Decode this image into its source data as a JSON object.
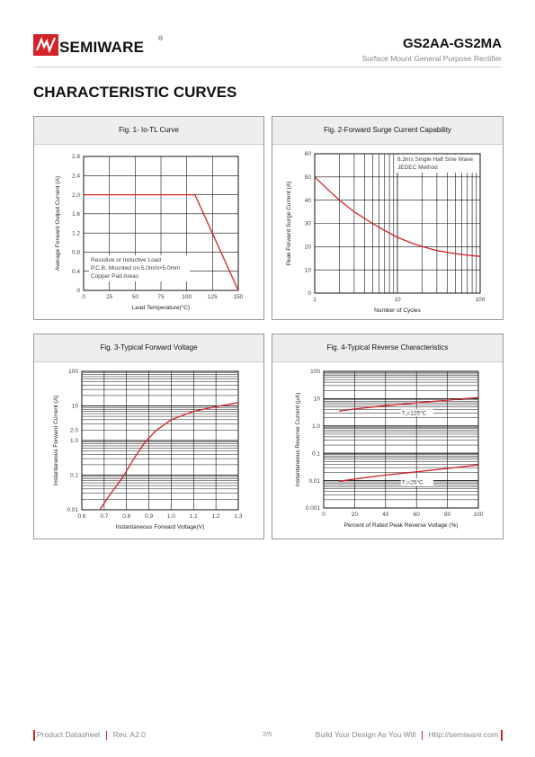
{
  "header": {
    "brand": "SEMIWARE",
    "reg_mark": "®",
    "part_number": "GS2AA-GS2MA",
    "subtitle": "Surface Mount General Purpose Rectifier"
  },
  "section_title": "CHARACTERISTIC CURVES",
  "colors": {
    "accent": "#d2232a",
    "grid": "#111111",
    "panel_header": "#eeeeef"
  },
  "figures": [
    {
      "title": "Fig. 1-  Io-TL Curve",
      "chart_data": {
        "type": "line",
        "xlabel": "Lead Temperature(°C)",
        "ylabel": "Average Forward Output Current (A)",
        "xlim": [
          0,
          150
        ],
        "ylim": [
          0,
          2.8
        ],
        "xticks": [
          "0",
          "25",
          "50",
          "75",
          "100",
          "125",
          "150"
        ],
        "yticks": [
          "0",
          "0.4",
          "0.8",
          "1.2",
          "1.6",
          "2.0",
          "2.4",
          "2.8"
        ],
        "x": [
          0,
          108,
          150
        ],
        "y": [
          2.0,
          2.0,
          0
        ],
        "annotations": [
          "Resistive or Inductive Load",
          "P.C.B. Mounted on 5.0mm×5.0mm",
          "Copper Pad Areas"
        ]
      }
    },
    {
      "title": "Fig. 2-Forward Surge Current Capability",
      "chart_data": {
        "type": "line",
        "xscale": "log",
        "xlabel": "Number of Cycles",
        "ylabel": "Peak Forward Surge Current (A)",
        "xlim": [
          1,
          100
        ],
        "ylim": [
          0,
          60
        ],
        "xticks": [
          "1",
          "10",
          "100"
        ],
        "yticks": [
          "0",
          "10",
          "20",
          "30",
          "40",
          "50",
          "60"
        ],
        "x": [
          1,
          1.5,
          2,
          3,
          5,
          7,
          10,
          15,
          20,
          30,
          50,
          70,
          100
        ],
        "y": [
          50,
          44,
          40,
          35,
          30,
          27,
          24,
          21.5,
          20,
          18.3,
          17,
          16.3,
          15.8
        ],
        "annotations": [
          "8.3ms Single Half Sine Wave",
          "JEDEC Method"
        ]
      }
    },
    {
      "title": "Fig. 3-Typical Forward Voltage",
      "chart_data": {
        "type": "line",
        "yscale": "log",
        "xlabel": "Instantaneous Forward Voltage(V)",
        "ylabel": "Instantaneous Forward Current (A)",
        "xlim": [
          0.6,
          1.3
        ],
        "ylim": [
          0.01,
          100
        ],
        "xticks": [
          "0.6",
          "0.7",
          "0.8",
          "0.9",
          "1.0",
          "1.1",
          "1.2",
          "1.3"
        ],
        "yticks": [
          "0.01",
          "0.1",
          "1.0",
          "2.0",
          "10",
          "100"
        ],
        "x": [
          0.68,
          0.73,
          0.78,
          0.83,
          0.88,
          0.93,
          1.0,
          1.1,
          1.2,
          1.3
        ],
        "y": [
          0.01,
          0.03,
          0.08,
          0.28,
          0.85,
          1.9,
          4.0,
          7.0,
          9.5,
          12.5
        ]
      }
    },
    {
      "title": "Fig. 4-Typical Reverse Characteristics",
      "chart_data": {
        "type": "line",
        "yscale": "log",
        "xlabel": "Percent of Rated Peak Reverse Voltage (%)",
        "ylabel": "Instantaneous Reverse Current (µA)",
        "xlim": [
          0,
          100
        ],
        "ylim": [
          0.001,
          100
        ],
        "xticks": [
          "0",
          "20",
          "40",
          "60",
          "80",
          "100"
        ],
        "yticks": [
          "0.001",
          "0.01",
          "0.1",
          "1.0",
          "10",
          "100"
        ],
        "series": [
          {
            "name": "T⁁=125°C",
            "x": [
              10,
              20,
              40,
              60,
              80,
              100
            ],
            "y": [
              3.5,
              4.2,
              5.5,
              7.0,
              8.8,
              11
            ]
          },
          {
            "name": "T⁁=25°C",
            "x": [
              10,
              20,
              40,
              60,
              80,
              100
            ],
            "y": [
              0.0095,
              0.0115,
              0.016,
              0.021,
              0.028,
              0.038
            ]
          }
        ]
      }
    }
  ],
  "footer": {
    "left": "Product Datasheet",
    "rev": "Rev. A2.0",
    "page": "2/5",
    "slogan": "Build Your Design As You Will",
    "url": "Http://semiware.com"
  }
}
